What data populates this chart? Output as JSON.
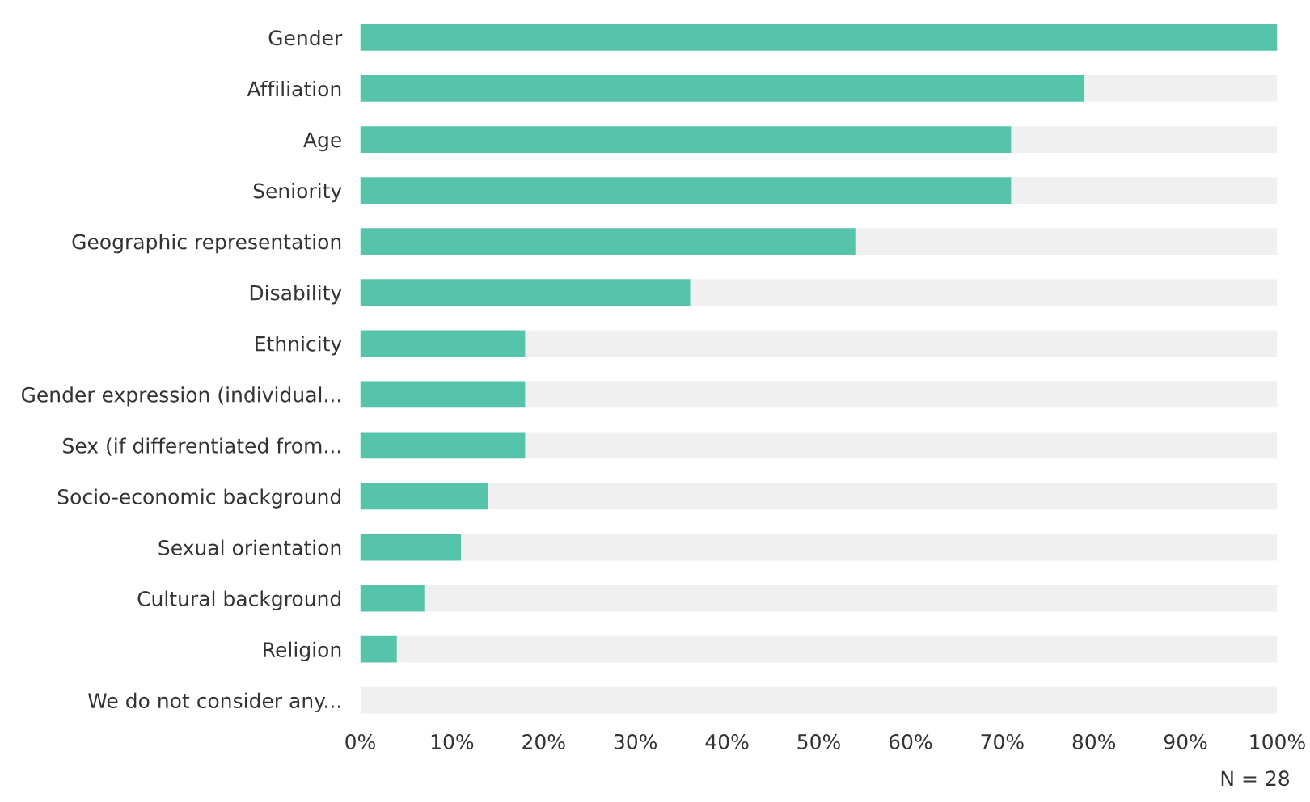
{
  "chart_data": {
    "type": "bar",
    "orientation": "horizontal",
    "stacked": true,
    "categories": [
      "Gender",
      "Affiliation",
      "Age",
      "Seniority",
      "Geographic representation",
      "Disability",
      "Ethnicity",
      "Gender expression (individual...",
      "Sex (if differentiated from...",
      "Socio-economic background",
      "Sexual orientation",
      "Cultural background",
      "Religion",
      "We do not consider any..."
    ],
    "series": [
      {
        "color": "#55c4ab",
        "values": [
          100,
          79,
          71,
          71,
          54,
          36,
          18,
          18,
          18,
          14,
          11,
          7,
          4,
          0
        ]
      },
      {
        "color": "#f0f0f0",
        "values": [
          0,
          21,
          29,
          29,
          46,
          64,
          82,
          82,
          82,
          86,
          89,
          93,
          96,
          100
        ]
      }
    ],
    "xlim": [
      0,
      100
    ],
    "xticks": [
      {
        "value": 0,
        "label": "0%"
      },
      {
        "value": 10,
        "label": "10%"
      },
      {
        "value": 20,
        "label": "20%"
      },
      {
        "value": 30,
        "label": "30%"
      },
      {
        "value": 40,
        "label": "40%"
      },
      {
        "value": 50,
        "label": "50%"
      },
      {
        "value": 60,
        "label": "60%"
      },
      {
        "value": 70,
        "label": "70%"
      },
      {
        "value": 80,
        "label": "80%"
      },
      {
        "value": 90,
        "label": "90%"
      },
      {
        "value": 100,
        "label": "100%"
      }
    ],
    "grid": false,
    "annotations": [
      "N = 28"
    ]
  }
}
